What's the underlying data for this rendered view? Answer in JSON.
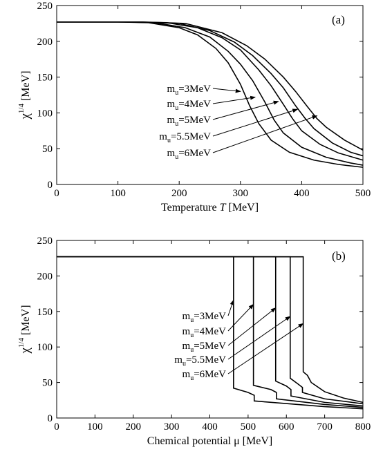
{
  "chart_data": [
    {
      "type": "line",
      "panel_label": "(a)",
      "xlabel": "Temperature",
      "xlabel_symbol": "T",
      "xlabel_unit": "[MeV]",
      "ylabel_base": "χ",
      "ylabel_exp": "1/4",
      "ylabel_unit": "[MeV]",
      "xlim": [
        0,
        500
      ],
      "ylim": [
        0,
        250
      ],
      "xticks": [
        0,
        100,
        200,
        300,
        400,
        500
      ],
      "yticks": [
        0,
        50,
        100,
        150,
        200,
        250
      ],
      "grid": false,
      "series": [
        {
          "name": "m",
          "sub": "u",
          "value": "=3MeV",
          "x": [
            0,
            100,
            150,
            200,
            230,
            260,
            280,
            300,
            315,
            330,
            350,
            380,
            420,
            460,
            500
          ],
          "y": [
            227,
            227,
            226,
            219,
            209,
            190,
            170,
            140,
            110,
            85,
            62,
            45,
            34,
            28,
            24
          ]
        },
        {
          "name": "m",
          "sub": "u",
          "value": "=4MeV",
          "x": [
            0,
            110,
            160,
            210,
            250,
            280,
            300,
            320,
            340,
            355,
            370,
            400,
            440,
            480,
            500
          ],
          "y": [
            227,
            227,
            226,
            219,
            206,
            186,
            168,
            145,
            115,
            90,
            72,
            52,
            38,
            30,
            27
          ]
        },
        {
          "name": "m",
          "sub": "u",
          "value": "=5MeV",
          "x": [
            0,
            120,
            180,
            230,
            270,
            300,
            330,
            350,
            370,
            385,
            400,
            430,
            460,
            500
          ],
          "y": [
            227,
            227,
            226,
            219,
            205,
            188,
            160,
            138,
            112,
            92,
            75,
            56,
            44,
            34
          ],
          "label_x": 400,
          "label_y": 116
        },
        {
          "name": "m",
          "sub": "u",
          "value": "=5.5MeV",
          "x": [
            0,
            130,
            200,
            250,
            290,
            320,
            350,
            370,
            390,
            405,
            420,
            450,
            480,
            500
          ],
          "y": [
            227,
            227,
            225,
            215,
            199,
            180,
            155,
            135,
            110,
            93,
            78,
            58,
            45,
            40
          ]
        },
        {
          "name": "m",
          "sub": "u",
          "value": "=6MeV",
          "x": [
            0,
            140,
            210,
            270,
            310,
            340,
            370,
            390,
            410,
            425,
            440,
            470,
            500
          ],
          "y": [
            227,
            227,
            225,
            212,
            194,
            175,
            150,
            130,
            108,
            92,
            80,
            62,
            48
          ]
        }
      ],
      "arrow_targets": [
        {
          "x": 300,
          "y": 130
        },
        {
          "x": 324,
          "y": 122
        },
        {
          "x": 362,
          "y": 116
        },
        {
          "x": 393,
          "y": 105
        },
        {
          "x": 425,
          "y": 96
        }
      ]
    },
    {
      "type": "line",
      "panel_label": "(b)",
      "xlabel": "Chemical potential",
      "xlabel_symbol": "μ",
      "xlabel_unit": "[MeV]",
      "ylabel_base": "χ",
      "ylabel_exp": "1/4",
      "ylabel_unit": "[MeV]",
      "xlim": [
        0,
        800
      ],
      "ylim": [
        0,
        250
      ],
      "xticks": [
        0,
        100,
        200,
        300,
        400,
        500,
        600,
        700,
        800
      ],
      "yticks": [
        0,
        50,
        100,
        150,
        200,
        250
      ],
      "grid": false,
      "series": [
        {
          "name": "m",
          "sub": "u",
          "value": "=3MeV",
          "x": [
            0,
            462,
            462,
            500,
            516,
            516,
            700,
            800
          ],
          "y": [
            227,
            227,
            42,
            36,
            32,
            24,
            16,
            13
          ]
        },
        {
          "name": "m",
          "sub": "u",
          "value": "=4MeV",
          "x": [
            0,
            514,
            514,
            560,
            574,
            574,
            700,
            800
          ],
          "y": [
            227,
            227,
            46,
            40,
            36,
            27,
            19,
            15
          ]
        },
        {
          "name": "m",
          "sub": "u",
          "value": "=5MeV",
          "x": [
            0,
            572,
            572,
            600,
            612,
            612,
            700,
            800
          ],
          "y": [
            227,
            227,
            52,
            45,
            40,
            31,
            22,
            17
          ]
        },
        {
          "name": "m",
          "sub": "u",
          "value": "=5.5MeV",
          "x": [
            0,
            610,
            610,
            630,
            642,
            642,
            700,
            800
          ],
          "y": [
            227,
            227,
            56,
            48,
            43,
            36,
            27,
            20
          ]
        },
        {
          "name": "m",
          "sub": "u",
          "value": "=6MeV",
          "x": [
            0,
            644,
            644,
            655,
            665,
            700,
            750,
            800
          ],
          "y": [
            227,
            227,
            65,
            60,
            50,
            37,
            28,
            22
          ]
        }
      ],
      "arrow_targets": [
        {
          "x": 462,
          "y": 166
        },
        {
          "x": 514,
          "y": 160
        },
        {
          "x": 572,
          "y": 155
        },
        {
          "x": 610,
          "y": 143
        },
        {
          "x": 644,
          "y": 133
        }
      ]
    }
  ]
}
